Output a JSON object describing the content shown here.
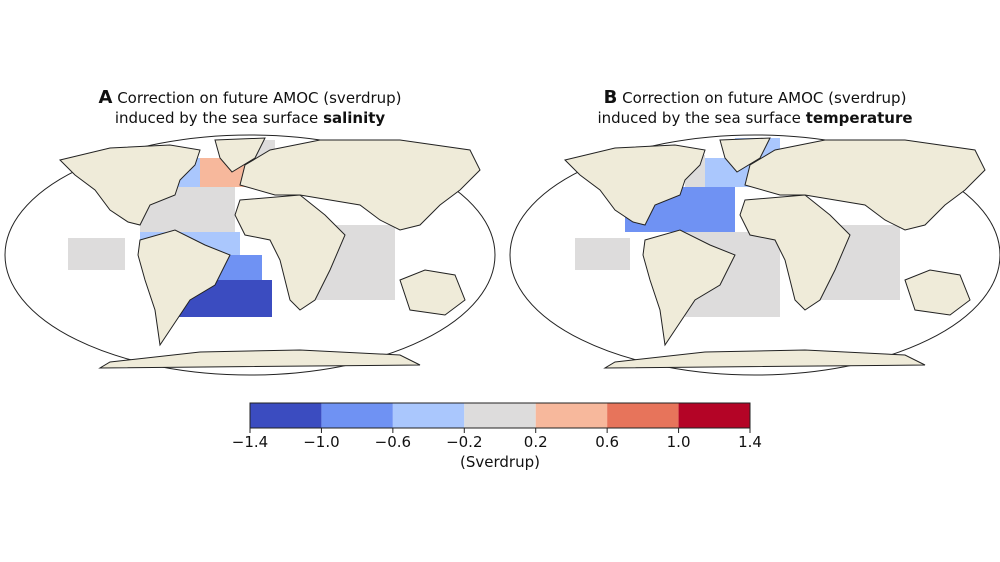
{
  "panels": [
    {
      "letter": "A",
      "title_line1": "Correction on future AMOC (sverdrup)",
      "title_line2": "induced by the sea surface",
      "title_bold": "salinity",
      "regions": [
        {
          "value": -0.4
        },
        {
          "value": 0.4
        },
        {
          "value": 0
        },
        {
          "value": 0
        },
        {
          "value": 0
        },
        {
          "value": -0.4
        },
        {
          "value": -0.8
        },
        {
          "value": -1.2
        },
        {
          "value": 0
        }
      ]
    },
    {
      "letter": "B",
      "title_line1": "Correction on future AMOC (sverdrup)",
      "title_line2": "induced by the sea surface",
      "title_bold": "temperature",
      "regions": [
        {
          "value": 0
        },
        {
          "value": -0.4
        },
        {
          "value": -0.4
        },
        {
          "value": -0.8
        },
        {
          "value": 0
        },
        {
          "value": 0
        },
        {
          "value": 0
        }
      ]
    }
  ],
  "colorbar": {
    "label": "(Sverdrup)",
    "ticks": [
      {
        "value": -1.4,
        "label": "−1.4"
      },
      {
        "value": -1.0,
        "label": "−1.0"
      },
      {
        "value": -0.6,
        "label": "−0.6"
      },
      {
        "value": -0.2,
        "label": "−0.2"
      },
      0.2,
      0.6,
      {
        "value": 1.0,
        "label": "1.0"
      },
      1.4
    ],
    "colors": [
      "#3b4cc0",
      "#6f92f3",
      "#aac7fd",
      "#dddcdc",
      "#f7b89c",
      "#e7745b",
      "#b40426"
    ]
  }
}
